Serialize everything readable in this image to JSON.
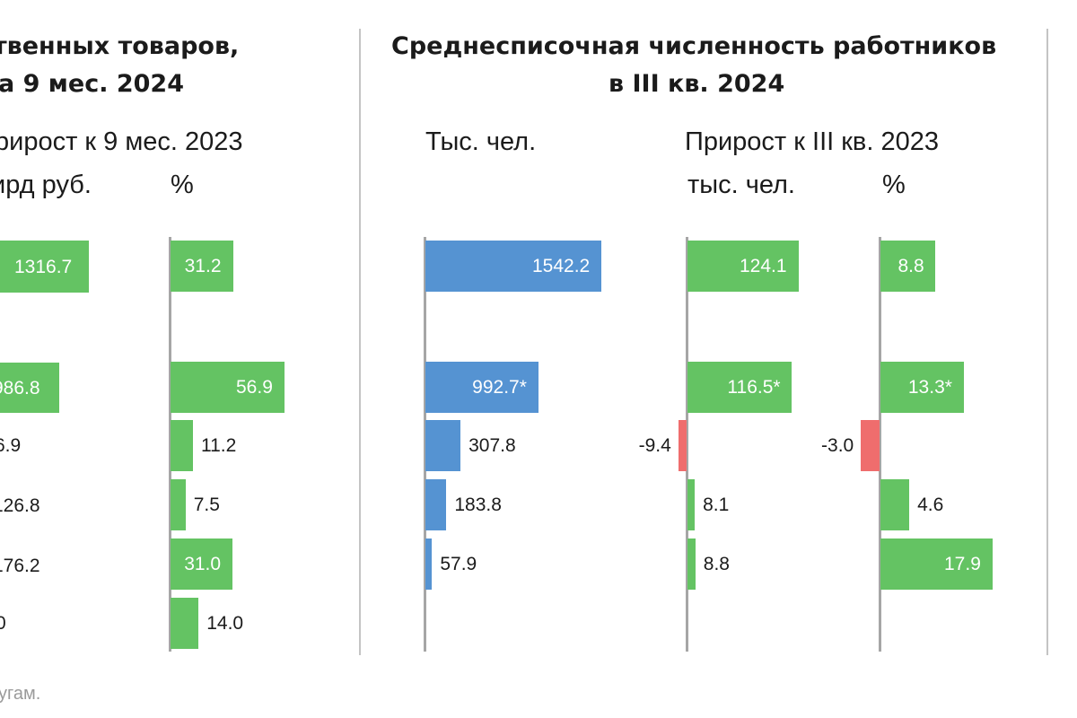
{
  "left_panel": {
    "title_line1": "твенных товаров,",
    "title_line2": "а 9 мес. 2024",
    "growth_header": "рирост к 9 мес. 2023",
    "unit_rub": "ирд руб.",
    "unit_pct": "%",
    "rub_labels": [
      "1316.7",
      "986.8",
      "6.9",
      "126.8",
      "176.2",
      "0"
    ]
  },
  "right_panel": {
    "title_line1": "Среднесписочная численность работников",
    "title_line2": "в III кв. 2024",
    "unit_count": "Тыс. чел.",
    "growth_header": "Прирост к III кв. 2023",
    "unit_growth_abs": "тыс. чел.",
    "unit_growth_pct": "%"
  },
  "footnote": "угам.",
  "colors": {
    "blue": "#5593d2",
    "green": "#64c363",
    "red": "#ef6d6d",
    "axis": "#a6a6a6"
  },
  "chart_data": [
    {
      "type": "bar",
      "orientation": "horizontal",
      "title": "Прирост к 9 мес. 2023, %",
      "values": [
        31.2,
        56.9,
        11.2,
        7.5,
        31.0,
        14.0
      ],
      "labels": [
        "31.2",
        "56.9",
        "11.2",
        "7.5",
        "31.0",
        "14.0"
      ],
      "rows": [
        0,
        2,
        3,
        4,
        5,
        6
      ],
      "colors": [
        "green",
        "green",
        "green",
        "green",
        "green",
        "green"
      ]
    },
    {
      "type": "bar",
      "orientation": "horizontal",
      "title": "Тыс. чел.",
      "values": [
        1542.2,
        992.7,
        307.8,
        183.8,
        57.9
      ],
      "labels": [
        "1542.2",
        "992.7*",
        "307.8",
        "183.8",
        "57.9"
      ],
      "rows": [
        0,
        2,
        3,
        4,
        5
      ],
      "colors": [
        "blue",
        "blue",
        "blue",
        "blue",
        "blue"
      ]
    },
    {
      "type": "bar",
      "orientation": "horizontal",
      "title": "Прирост к III кв. 2023, тыс. чел.",
      "values": [
        124.1,
        116.5,
        -9.4,
        8.1,
        8.8
      ],
      "labels": [
        "124.1",
        "116.5*",
        "-9.4",
        "8.1",
        "8.8"
      ],
      "rows": [
        0,
        2,
        3,
        4,
        5
      ],
      "colors": [
        "green",
        "green",
        "red",
        "green",
        "green"
      ]
    },
    {
      "type": "bar",
      "orientation": "horizontal",
      "title": "Прирост к III кв. 2023, %",
      "values": [
        8.8,
        13.3,
        -3.0,
        4.6,
        17.9
      ],
      "labels": [
        "8.8",
        "13.3*",
        "-3.0",
        "4.6",
        "17.9"
      ],
      "rows": [
        0,
        2,
        3,
        4,
        5
      ],
      "colors": [
        "green",
        "green",
        "red",
        "green",
        "green"
      ]
    }
  ]
}
